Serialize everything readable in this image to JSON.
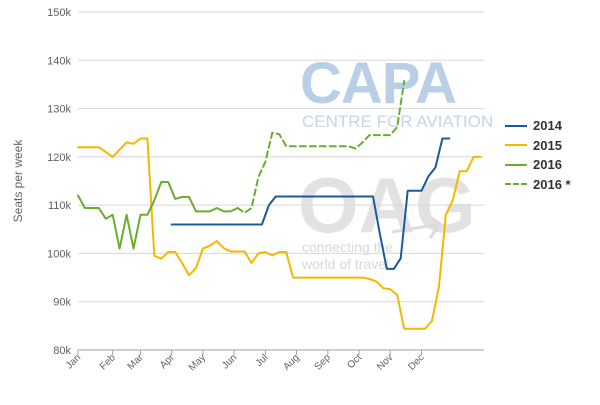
{
  "watermarks": {
    "capa_logo": "CAPA",
    "capa_tagline": "CENTRE FOR AVIATION",
    "oag_logo": "OAG",
    "oag_tagline_1": "connecting the",
    "oag_tagline_2": "world of travel"
  },
  "chart_data": {
    "type": "line",
    "title": "",
    "xlabel": "",
    "ylabel": "Seats per week",
    "ylim": [
      80000,
      150000
    ],
    "yticks": [
      80000,
      90000,
      100000,
      110000,
      120000,
      130000,
      140000,
      150000
    ],
    "ytick_labels": [
      "80k",
      "90k",
      "100k",
      "110k",
      "120k",
      "130k",
      "140k",
      "150k"
    ],
    "xlim": [
      0,
      58.5
    ],
    "xticks": [
      0,
      5,
      9,
      13.5,
      18,
      22.5,
      27,
      31.5,
      36,
      40.5,
      45,
      49.5
    ],
    "xtick_labels": [
      "Jan",
      "Feb",
      "Mar",
      "Apr",
      "May",
      "Jun",
      "Jul",
      "Aug",
      "Sep",
      "Oct",
      "Nov",
      "Dec"
    ],
    "grid": "horizontal",
    "legend_position": "right",
    "series": [
      {
        "name": "2014",
        "color": "#1a5aa0",
        "dash": false,
        "x": [
          13.5,
          14.5,
          15.5,
          16.5,
          17.5,
          18.5,
          19.5,
          20.5,
          21.5,
          22.5,
          23.5,
          24.5,
          25.5,
          26.5,
          27.5,
          28.5,
          29.5,
          30.5,
          31.5,
          32.5,
          33.5,
          34.5,
          35.5,
          36.5,
          37.5,
          38.5,
          39.5,
          40.5,
          41.5,
          42.5,
          43.5,
          44.5,
          45.5,
          46.5,
          47.5,
          48.5,
          49.5,
          50.5,
          51.5,
          52.5,
          53.5
        ],
        "values": [
          106000,
          106000,
          106000,
          106000,
          106000,
          106000,
          106000,
          106000,
          106000,
          106000,
          106000,
          106000,
          106000,
          106000,
          110000,
          111800,
          111800,
          111800,
          111800,
          111800,
          111800,
          111800,
          111800,
          111800,
          111800,
          111800,
          111800,
          111800,
          111800,
          111800,
          104000,
          96800,
          96800,
          99000,
          113000,
          113000,
          113000,
          116000,
          117800,
          123800,
          123800
        ]
      },
      {
        "name": "2015",
        "color": "#f5b800",
        "dash": false,
        "x": [
          0,
          1,
          2,
          3,
          4,
          5,
          6,
          7,
          8,
          9,
          10,
          11,
          12,
          13,
          14,
          15,
          16,
          17,
          18,
          19,
          20,
          21,
          22,
          23,
          24,
          25,
          26,
          27,
          28,
          29,
          30,
          31,
          32,
          33,
          34,
          35,
          36,
          37,
          38,
          39,
          40,
          41,
          42,
          43,
          44,
          45,
          46,
          47,
          48,
          49,
          50,
          51,
          52,
          53,
          54,
          55,
          56,
          57,
          58
        ],
        "values": [
          122000,
          122000,
          122000,
          122000,
          121000,
          120000,
          121500,
          123000,
          122700,
          123800,
          123800,
          99500,
          98900,
          100300,
          100300,
          98000,
          95500,
          97000,
          101000,
          101600,
          102600,
          101100,
          100400,
          100400,
          100400,
          98000,
          100000,
          100300,
          99600,
          100300,
          100300,
          95000,
          95000,
          95000,
          95000,
          95000,
          95000,
          95000,
          95000,
          95000,
          95000,
          95000,
          94700,
          94200,
          92800,
          92600,
          91400,
          84400,
          84400,
          84400,
          84400,
          86000,
          93000,
          108000,
          111000,
          117000,
          117000,
          120000,
          120000
        ]
      },
      {
        "name": "2016",
        "color": "#6aac2d",
        "dash": false,
        "x": [
          0,
          1,
          2,
          3,
          4,
          5,
          6,
          7,
          8,
          9,
          10,
          11,
          12,
          13,
          14,
          15,
          16,
          17,
          18,
          19,
          20,
          21,
          22,
          23
        ],
        "values": [
          112000,
          109400,
          109400,
          109400,
          107200,
          108000,
          101000,
          108000,
          101000,
          108000,
          108000,
          111000,
          114800,
          114800,
          111300,
          111700,
          111700,
          108700,
          108700,
          108700,
          109400,
          108700,
          108700,
          109400
        ]
      },
      {
        "name": "2016 *",
        "color": "#6aac2d",
        "dash": true,
        "x": [
          23,
          24,
          25,
          26,
          27,
          28,
          29,
          30,
          31,
          32,
          33,
          34,
          35,
          36,
          37,
          38,
          39,
          40,
          41,
          42,
          43,
          44,
          45,
          46,
          47
        ],
        "values": [
          109400,
          108400,
          109400,
          115800,
          119000,
          125000,
          124700,
          122200,
          122200,
          122200,
          122200,
          122200,
          122200,
          122200,
          122200,
          122200,
          122200,
          121700,
          123000,
          124500,
          124500,
          124500,
          124500,
          126200,
          135700
        ]
      }
    ]
  }
}
